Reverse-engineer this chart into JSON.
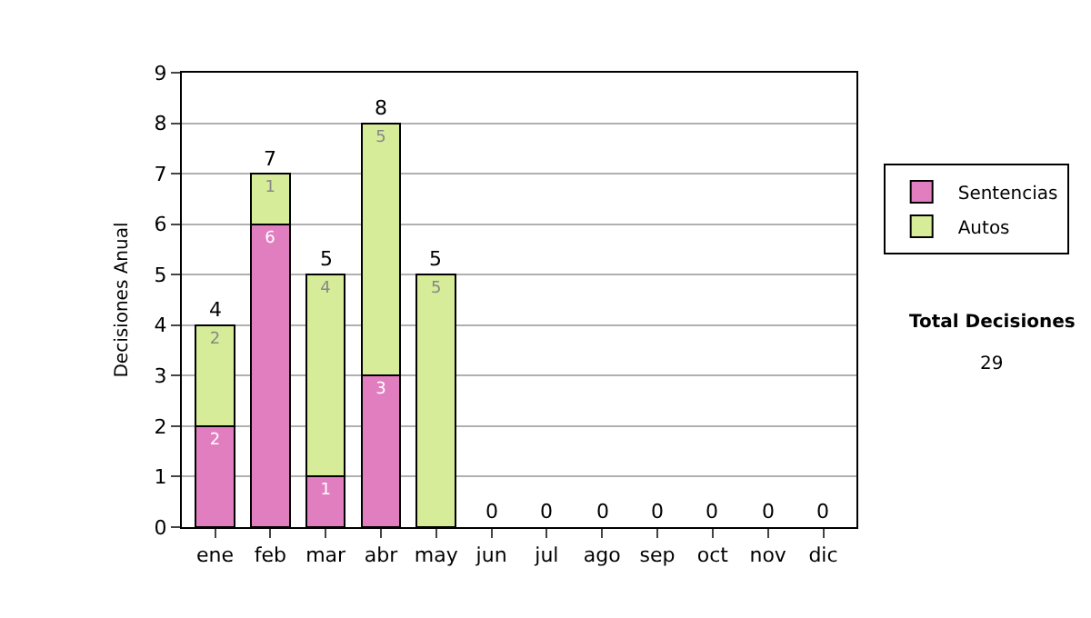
{
  "chart_data": {
    "type": "bar",
    "stacked": true,
    "ylabel": "Decisiones Anual",
    "categories": [
      "ene",
      "feb",
      "mar",
      "abr",
      "may",
      "jun",
      "jul",
      "ago",
      "sep",
      "oct",
      "nov",
      "dic"
    ],
    "series": [
      {
        "name": "Sentencias",
        "color": "#e07ec0",
        "values": [
          2,
          6,
          1,
          3,
          0,
          0,
          0,
          0,
          0,
          0,
          0,
          0
        ],
        "value_labels": [
          "2",
          "6",
          "1",
          "3",
          null,
          null,
          null,
          null,
          null,
          null,
          null,
          null
        ]
      },
      {
        "name": "Autos",
        "color": "#d6ec98",
        "values": [
          2,
          1,
          4,
          5,
          5,
          0,
          0,
          0,
          0,
          0,
          0,
          0
        ],
        "value_labels": [
          "2",
          "1",
          "4",
          "5",
          "5",
          null,
          null,
          null,
          null,
          null,
          null,
          null
        ]
      }
    ],
    "totals": [
      "4",
      "7",
      "5",
      "8",
      "5",
      "0",
      "0",
      "0",
      "0",
      "0",
      "0",
      "0"
    ],
    "ylim": [
      0,
      9
    ],
    "yticks": [
      0,
      1,
      2,
      3,
      4,
      5,
      6,
      7,
      8,
      9
    ],
    "grid": "y",
    "legend": "right",
    "annotations": [
      "Total Decisiones",
      "29"
    ]
  }
}
